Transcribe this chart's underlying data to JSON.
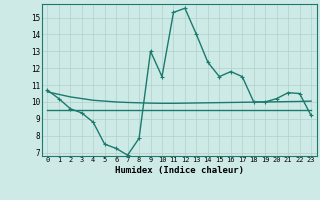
{
  "x": [
    0,
    1,
    2,
    3,
    4,
    5,
    6,
    7,
    8,
    9,
    10,
    11,
    12,
    13,
    14,
    15,
    16,
    17,
    18,
    19,
    20,
    21,
    22,
    23
  ],
  "line1": [
    10.7,
    10.2,
    9.6,
    9.35,
    8.8,
    7.5,
    7.25,
    6.85,
    7.85,
    13.0,
    11.5,
    15.3,
    15.55,
    14.0,
    12.35,
    11.5,
    11.8,
    11.5,
    10.0,
    10.0,
    10.2,
    10.55,
    10.5,
    9.2
  ],
  "line2": [
    10.6,
    10.45,
    10.3,
    10.2,
    10.1,
    10.05,
    10.0,
    9.97,
    9.95,
    9.93,
    9.92,
    9.92,
    9.93,
    9.94,
    9.95,
    9.96,
    9.97,
    9.98,
    9.99,
    10.0,
    10.01,
    10.02,
    10.03,
    10.05
  ],
  "line3": [
    9.5,
    9.5,
    9.5,
    9.5,
    9.5,
    9.5,
    9.5,
    9.5,
    9.5,
    9.5,
    9.5,
    9.5,
    9.5,
    9.5,
    9.5,
    9.5,
    9.5,
    9.5,
    9.5,
    9.5,
    9.5,
    9.5,
    9.5,
    9.5
  ],
  "line_color": "#1a7a6e",
  "bg_color": "#ceeae6",
  "grid_color": "#b0d0cc",
  "xlabel": "Humidex (Indice chaleur)",
  "ylim": [
    6.8,
    15.8
  ],
  "xlim": [
    -0.5,
    23.5
  ],
  "yticks": [
    7,
    8,
    9,
    10,
    11,
    12,
    13,
    14,
    15
  ],
  "xticks": [
    0,
    1,
    2,
    3,
    4,
    5,
    6,
    7,
    8,
    9,
    10,
    11,
    12,
    13,
    14,
    15,
    16,
    17,
    18,
    19,
    20,
    21,
    22,
    23
  ],
  "marker_size": 2.2,
  "line_width": 1.0
}
